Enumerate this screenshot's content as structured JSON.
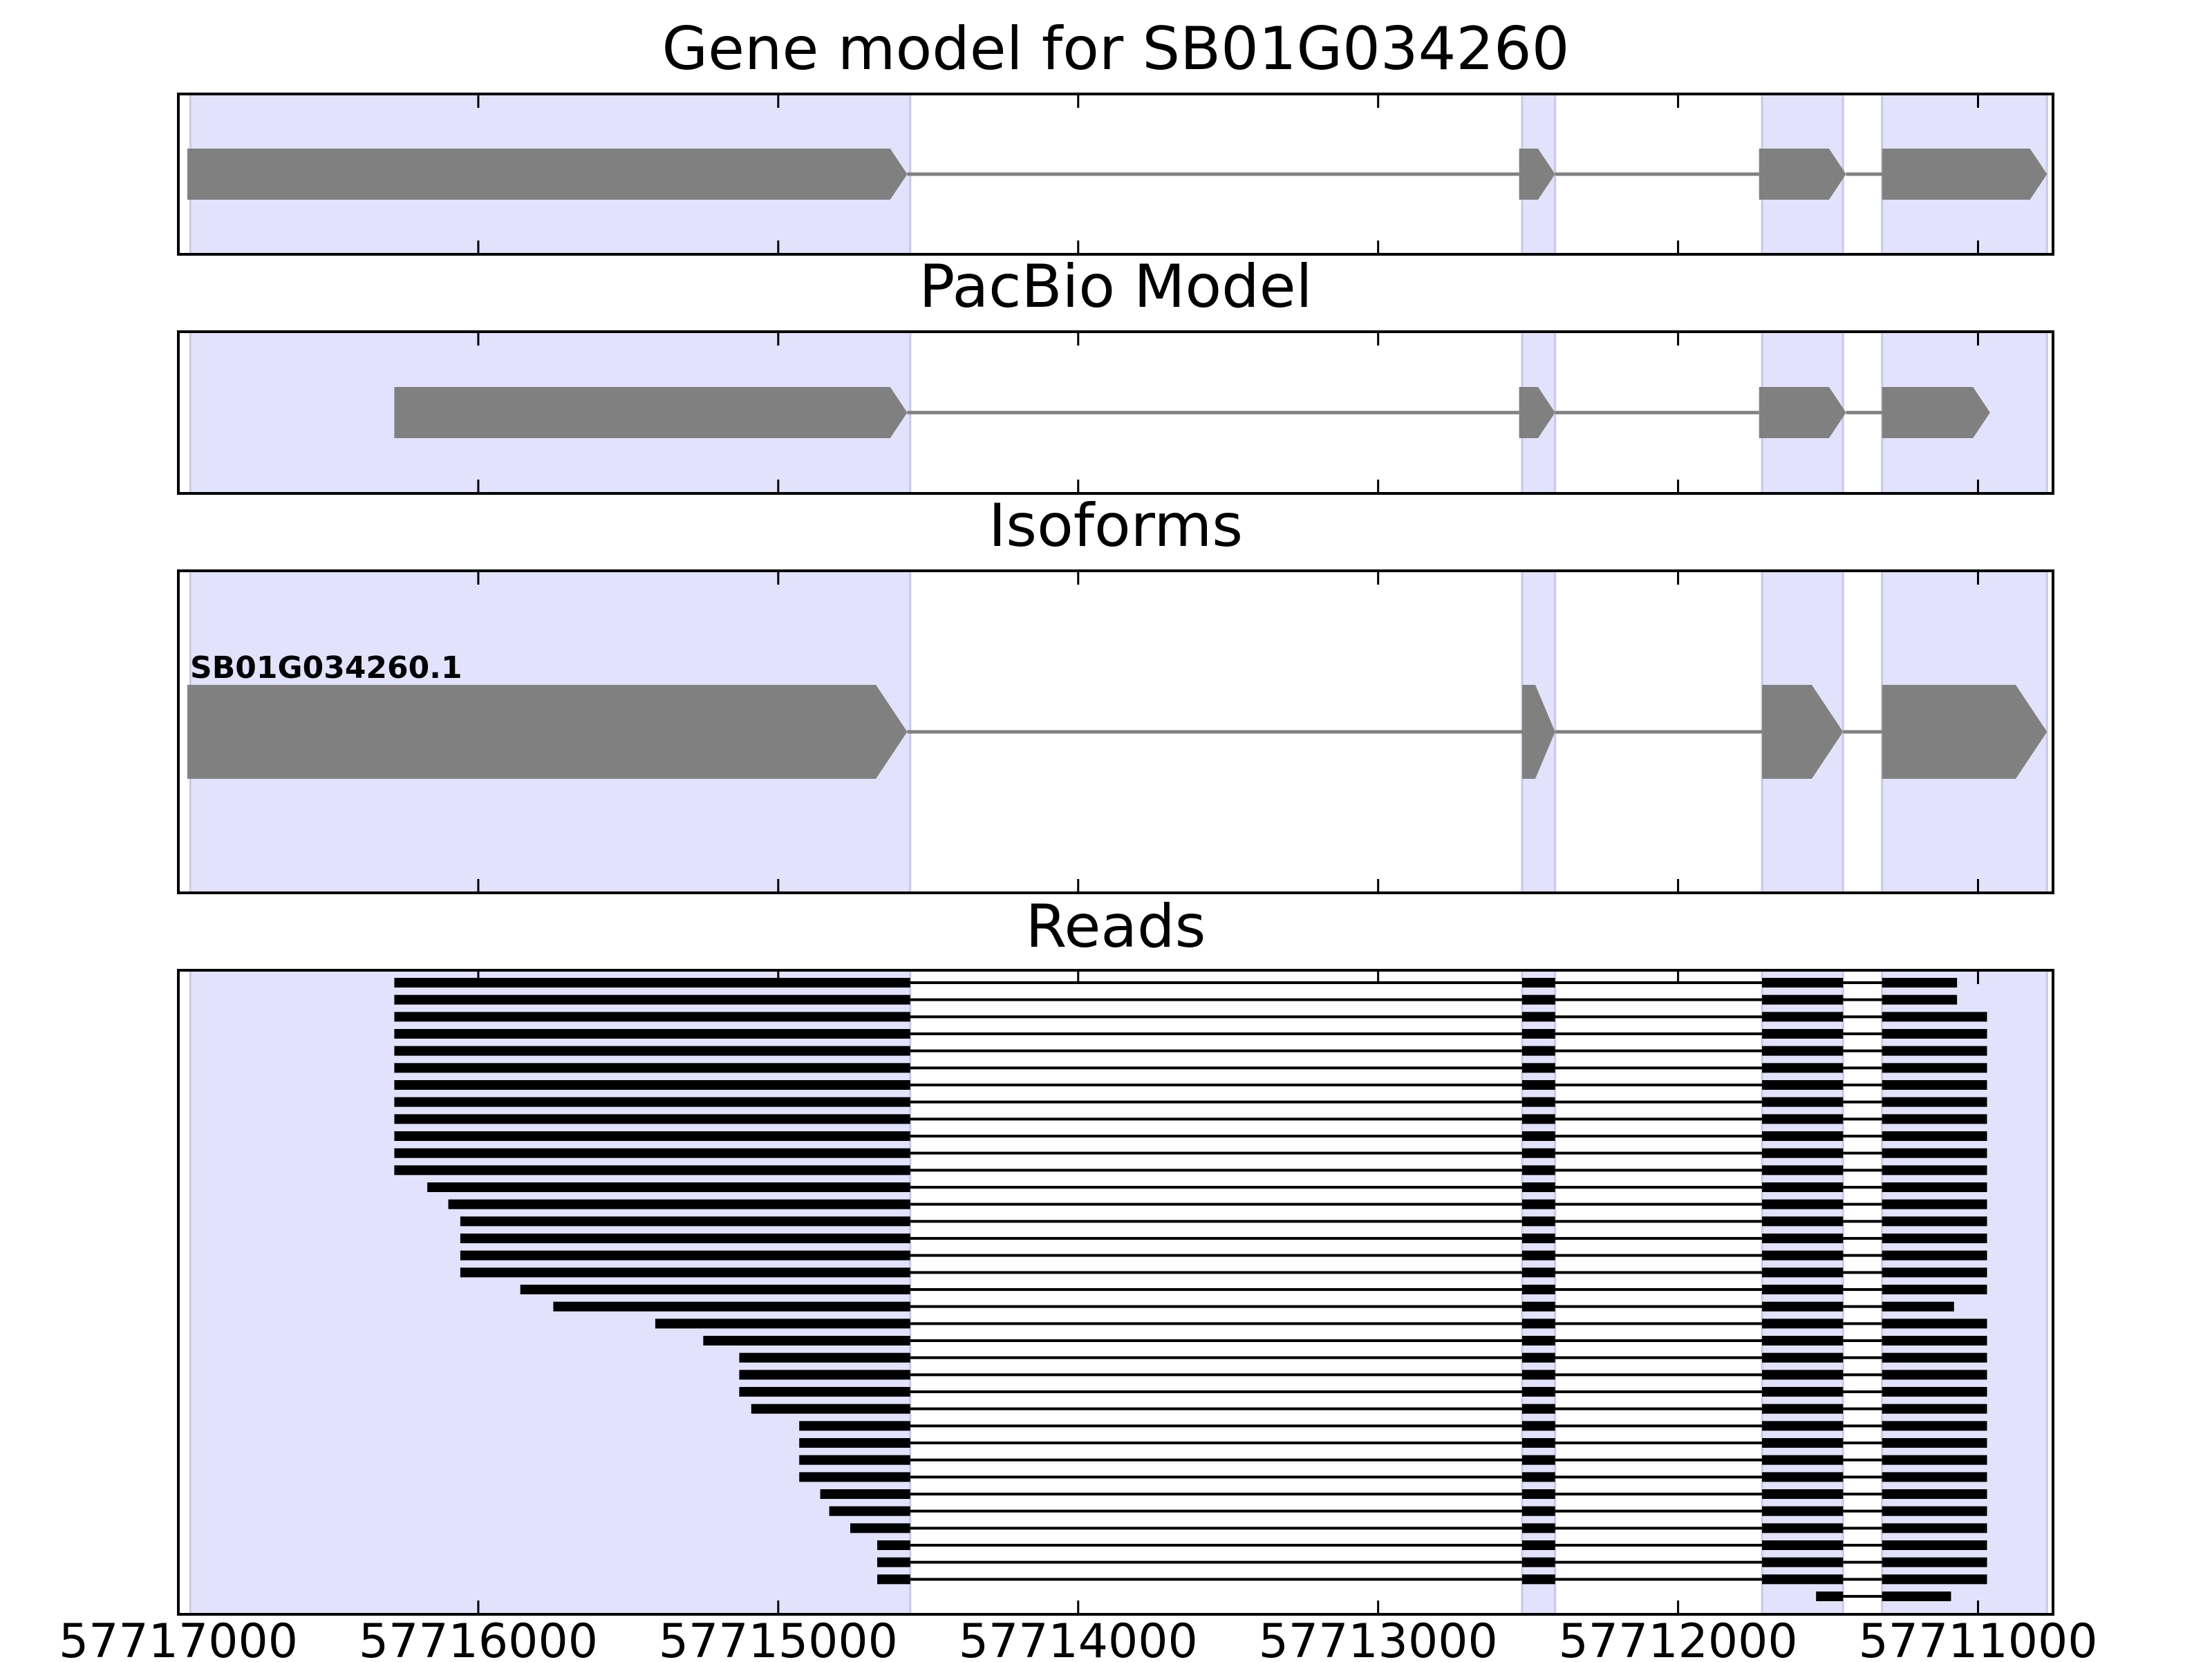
{
  "chart_data": {
    "type": "gene-structure",
    "xaxis": {
      "range": [
        57717000,
        57710750
      ],
      "reversed": true,
      "ticks": [
        57717000,
        57716000,
        57715000,
        57714000,
        57713000,
        57712000,
        57711000
      ],
      "tick_labels": [
        "57717000",
        "57716000",
        "57715000",
        "57714000",
        "57713000",
        "57712000",
        "57711000"
      ]
    },
    "exon_regions": [
      [
        57716960,
        57714560
      ],
      [
        57712520,
        57712410
      ],
      [
        57711720,
        57711450
      ],
      [
        57711320,
        57710770
      ]
    ],
    "colors": {
      "exon_region": "#e2e2fc",
      "exon_region_edge": "#c8c8ee",
      "model_feature": "#808080",
      "read": "#000000"
    },
    "panels": [
      {
        "id": "gene-model",
        "title": "Gene model for SB01G034260",
        "exons": [
          [
            57716970,
            57714570
          ],
          [
            57712530,
            57712410
          ],
          [
            57711730,
            57711440
          ],
          [
            57711320,
            57710770
          ]
        ]
      },
      {
        "id": "pacbio-model",
        "title": "PacBio Model",
        "exons": [
          [
            57716280,
            57714570
          ],
          [
            57712530,
            57712410
          ],
          [
            57711730,
            57711440
          ],
          [
            57711320,
            57710960
          ]
        ]
      },
      {
        "id": "isoforms",
        "title": "Isoforms",
        "isoform_label": "SB01G034260.1",
        "exons": [
          [
            57716970,
            57714570
          ],
          [
            57712520,
            57712410
          ],
          [
            57711720,
            57711450
          ],
          [
            57711320,
            57710770
          ]
        ]
      },
      {
        "id": "reads",
        "title": "Reads",
        "reads": [
          [
            57716280,
            57711070
          ],
          [
            57716280,
            57711070
          ],
          [
            57716280,
            57710970
          ],
          [
            57716280,
            57710970
          ],
          [
            57716280,
            57710970
          ],
          [
            57716280,
            57710970
          ],
          [
            57716280,
            57710970
          ],
          [
            57716280,
            57710970
          ],
          [
            57716280,
            57710970
          ],
          [
            57716280,
            57710970
          ],
          [
            57716280,
            57710970
          ],
          [
            57716280,
            57710970
          ],
          [
            57716170,
            57710970
          ],
          [
            57716100,
            57710970
          ],
          [
            57716060,
            57710970
          ],
          [
            57716060,
            57710970
          ],
          [
            57716060,
            57710970
          ],
          [
            57716060,
            57710970
          ],
          [
            57715860,
            57710970
          ],
          [
            57715750,
            57711080
          ],
          [
            57715410,
            57710970
          ],
          [
            57715250,
            57710970
          ],
          [
            57715130,
            57710970
          ],
          [
            57715130,
            57710970
          ],
          [
            57715130,
            57710970
          ],
          [
            57715090,
            57710970
          ],
          [
            57714930,
            57710970
          ],
          [
            57714930,
            57710970
          ],
          [
            57714930,
            57710970
          ],
          [
            57714930,
            57710970
          ],
          [
            57714860,
            57710970
          ],
          [
            57714830,
            57710970
          ],
          [
            57714760,
            57710970
          ],
          [
            57714670,
            57710970
          ],
          [
            57714670,
            57710970
          ],
          [
            57714670,
            57710970
          ],
          [
            57711540,
            57711090
          ]
        ]
      }
    ]
  }
}
